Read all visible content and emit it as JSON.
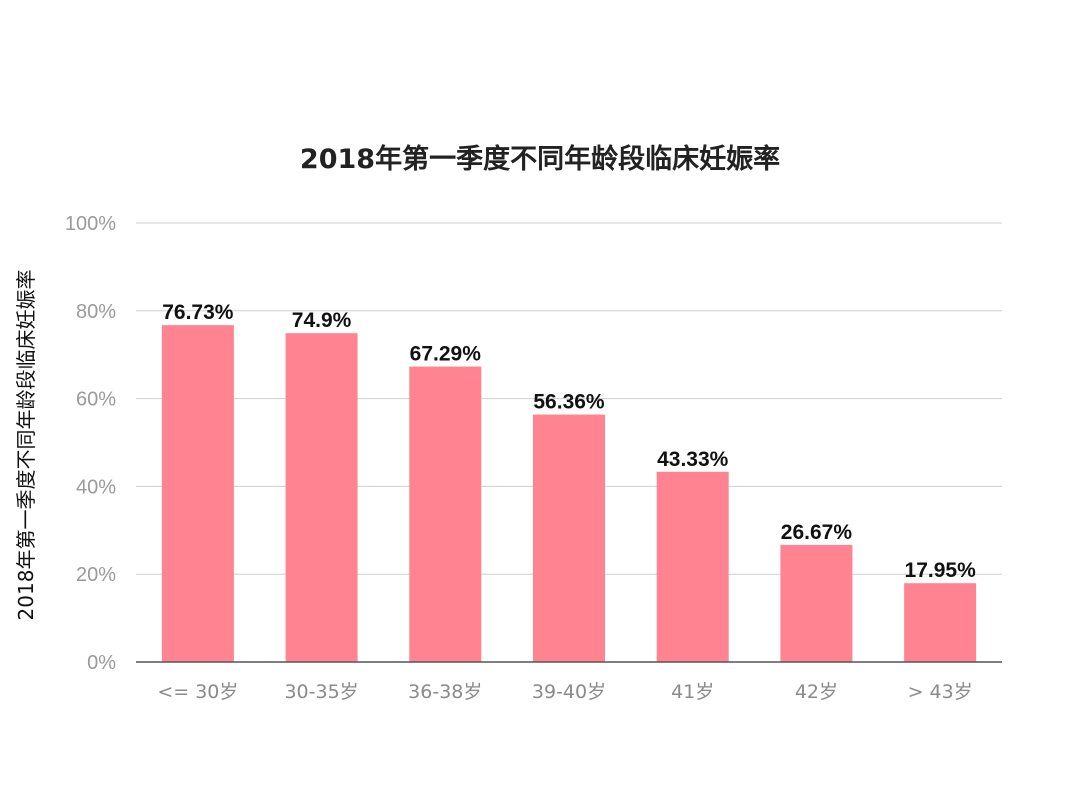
{
  "chart_data": {
    "type": "bar",
    "title": "2018年第一季度不同年龄段临床妊娠率",
    "xlabel": "",
    "ylabel": "2018年第一季度不同年龄段临床妊娠率",
    "categories": [
      "<= 30岁",
      "30-35岁",
      "36-38岁",
      "39-40岁",
      "41岁",
      "42岁",
      "> 43岁"
    ],
    "values": [
      76.73,
      74.9,
      67.29,
      56.36,
      43.33,
      26.67,
      17.95
    ],
    "value_labels": [
      "76.73%",
      "74.9%",
      "67.29%",
      "56.36%",
      "43.33%",
      "26.67%",
      "17.95%"
    ],
    "ylim": [
      0,
      100
    ],
    "yticks": [
      0,
      20,
      40,
      60,
      80,
      100
    ],
    "ytick_labels": [
      "0%",
      "20%",
      "40%",
      "60%",
      "80%",
      "100%"
    ],
    "grid": true,
    "legend": "none",
    "colors": {
      "bar": "#ff8391",
      "grid": "#cfcfcf",
      "baseline": "#555555"
    }
  }
}
